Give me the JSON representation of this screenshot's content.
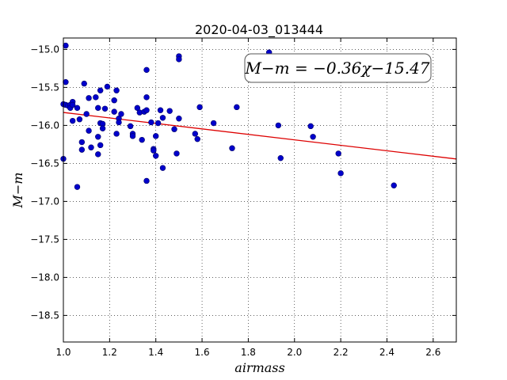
{
  "chart_data": {
    "type": "scatter",
    "title": "2020-04-03_013444",
    "xlabel": "airmass",
    "ylabel": "M−m",
    "xlim": [
      1.0,
      2.7
    ],
    "ylim": [
      -18.85,
      -14.85
    ],
    "y_inverted": true,
    "grid": true,
    "grid_style": "dotted",
    "x_ticks": [
      1.0,
      1.2,
      1.4,
      1.6,
      1.8,
      2.0,
      2.2,
      2.4,
      2.6
    ],
    "x_tick_labels": [
      "1.0",
      "1.2",
      "1.4",
      "1.6",
      "1.8",
      "2.0",
      "2.2",
      "2.4",
      "2.6"
    ],
    "y_ticks": [
      -15.0,
      -15.5,
      -16.0,
      -16.5,
      -17.0,
      -17.5,
      -18.0,
      -18.5
    ],
    "y_tick_labels": [
      "−15.0",
      "−15.5",
      "−16.0",
      "−16.5",
      "−17.0",
      "−17.5",
      "−18.0",
      "−18.5"
    ],
    "point_color": "#0000cc",
    "line_color": "#dd0000",
    "fit": {
      "slope": -0.36,
      "intercept": -15.47
    },
    "annotation": "M−m = −0.36χ−15.47",
    "annotation_position": "top-right",
    "points": [
      [
        1.0,
        -16.44
      ],
      [
        1.01,
        -14.95
      ],
      [
        1.01,
        -15.43
      ],
      [
        1.0,
        -15.72
      ],
      [
        1.01,
        -15.73
      ],
      [
        1.02,
        -15.74
      ],
      [
        1.03,
        -15.73
      ],
      [
        1.03,
        -15.77
      ],
      [
        1.04,
        -15.69
      ],
      [
        1.04,
        -15.73
      ],
      [
        1.04,
        -15.94
      ],
      [
        1.06,
        -15.77
      ],
      [
        1.06,
        -16.81
      ],
      [
        1.07,
        -15.92
      ],
      [
        1.08,
        -16.32
      ],
      [
        1.08,
        -16.22
      ],
      [
        1.09,
        -15.45
      ],
      [
        1.1,
        -15.85
      ],
      [
        1.11,
        -15.64
      ],
      [
        1.11,
        -16.07
      ],
      [
        1.12,
        -16.29
      ],
      [
        1.14,
        -15.63
      ],
      [
        1.15,
        -15.77
      ],
      [
        1.15,
        -16.38
      ],
      [
        1.15,
        -16.15
      ],
      [
        1.16,
        -15.54
      ],
      [
        1.16,
        -15.97
      ],
      [
        1.16,
        -16.26
      ],
      [
        1.17,
        -15.98
      ],
      [
        1.17,
        -16.04
      ],
      [
        1.18,
        -15.78
      ],
      [
        1.19,
        -15.49
      ],
      [
        1.22,
        -15.67
      ],
      [
        1.22,
        -15.82
      ],
      [
        1.23,
        -15.54
      ],
      [
        1.23,
        -16.11
      ],
      [
        1.24,
        -15.91
      ],
      [
        1.24,
        -15.96
      ],
      [
        1.25,
        -15.85
      ],
      [
        1.29,
        -16.01
      ],
      [
        1.3,
        -16.11
      ],
      [
        1.3,
        -16.14
      ],
      [
        1.32,
        -15.77
      ],
      [
        1.33,
        -15.83
      ],
      [
        1.34,
        -16.19
      ],
      [
        1.35,
        -15.82
      ],
      [
        1.36,
        -15.27
      ],
      [
        1.36,
        -15.63
      ],
      [
        1.36,
        -15.8
      ],
      [
        1.36,
        -16.73
      ],
      [
        1.38,
        -15.96
      ],
      [
        1.39,
        -16.31
      ],
      [
        1.39,
        -16.33
      ],
      [
        1.4,
        -16.14
      ],
      [
        1.4,
        -16.4
      ],
      [
        1.41,
        -15.97
      ],
      [
        1.42,
        -15.8
      ],
      [
        1.43,
        -15.9
      ],
      [
        1.43,
        -16.56
      ],
      [
        1.46,
        -15.81
      ],
      [
        1.48,
        -16.05
      ],
      [
        1.49,
        -16.37
      ],
      [
        1.5,
        -15.09
      ],
      [
        1.5,
        -15.13
      ],
      [
        1.5,
        -15.91
      ],
      [
        1.57,
        -16.11
      ],
      [
        1.58,
        -16.18
      ],
      [
        1.59,
        -15.76
      ],
      [
        1.65,
        -15.97
      ],
      [
        1.73,
        -16.3
      ],
      [
        1.75,
        -15.76
      ],
      [
        1.89,
        -15.04
      ],
      [
        1.93,
        -16.0
      ],
      [
        1.94,
        -16.43
      ],
      [
        2.07,
        -16.01
      ],
      [
        2.08,
        -16.15
      ],
      [
        2.19,
        -16.37
      ],
      [
        2.2,
        -16.63
      ],
      [
        2.43,
        -16.79
      ]
    ]
  }
}
